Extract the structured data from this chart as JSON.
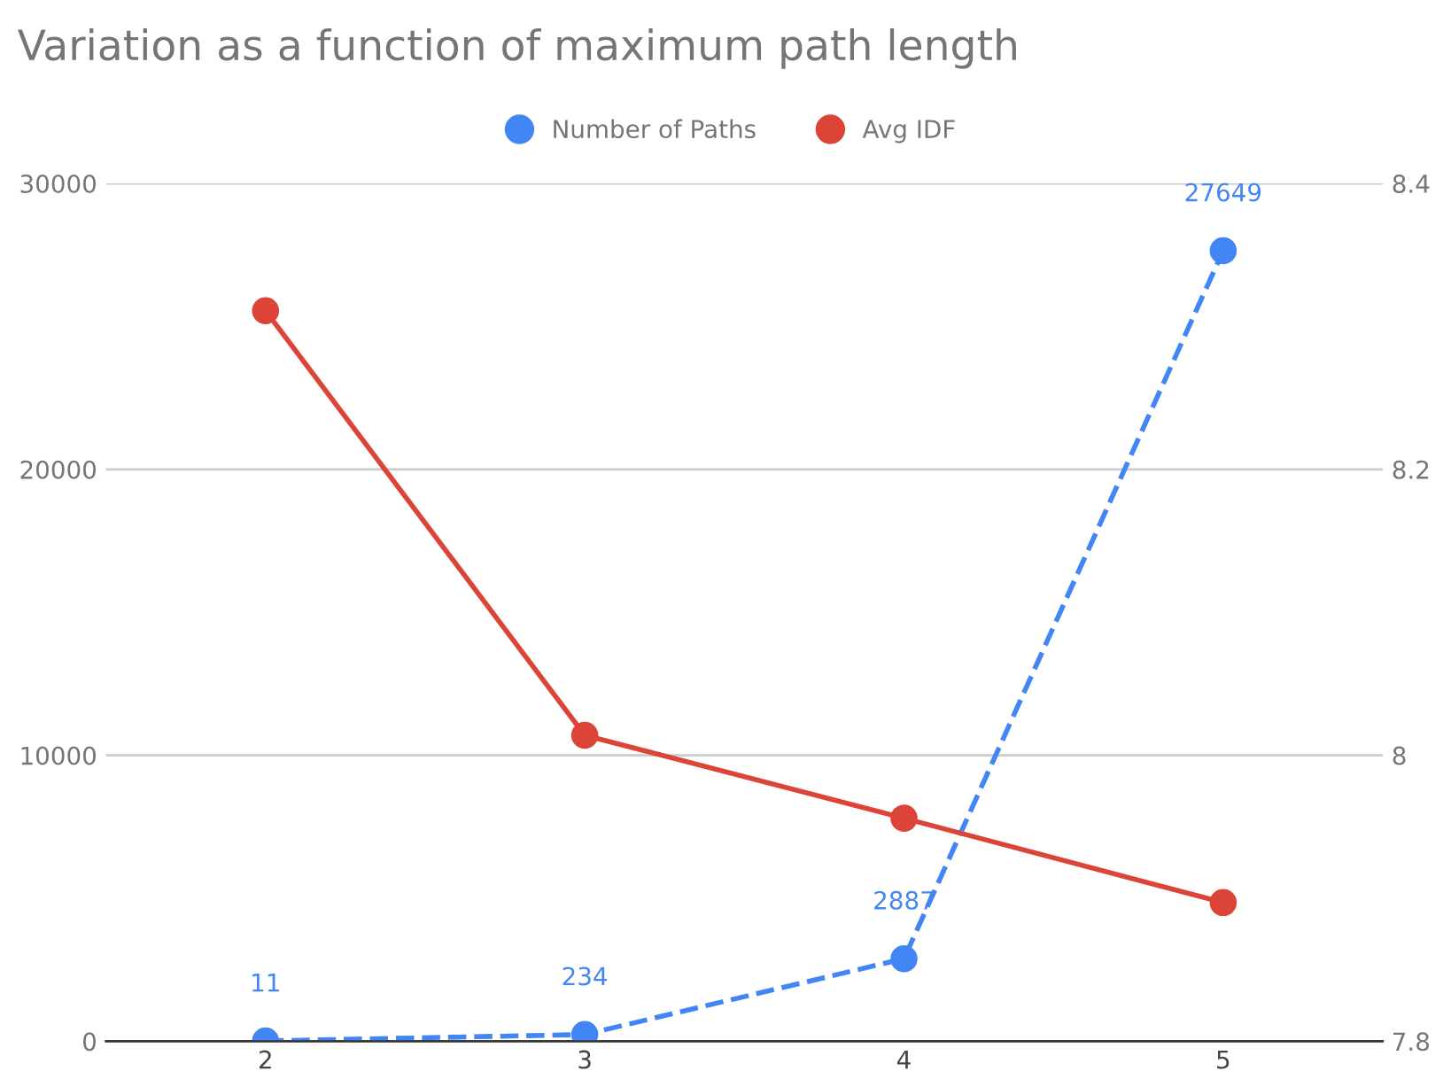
{
  "chart_data": {
    "type": "line",
    "title": "Variation as a function of maximum path length",
    "categories": [
      "2",
      "3",
      "4",
      "5"
    ],
    "series": [
      {
        "name": "Number of Paths",
        "color": "#4285f4",
        "values": [
          11,
          234,
          2887,
          27649
        ],
        "value_labels": [
          "11",
          "234",
          "2887",
          "27649"
        ],
        "line_style": "dashed"
      },
      {
        "name": "Avg IDF",
        "color": "#db4437",
        "values": [
          8.311,
          8.014,
          7.956,
          7.897
        ],
        "axis": "y2",
        "line_style": "solid"
      }
    ],
    "ylim": [
      0,
      30000
    ],
    "yticks": [
      0,
      10000,
      20000,
      30000
    ],
    "y2lim": [
      7.8,
      8.4
    ],
    "y2ticks": [
      7.8,
      8,
      8.2,
      8.4
    ],
    "grid": "y",
    "legend": "top",
    "marker": "circle"
  }
}
